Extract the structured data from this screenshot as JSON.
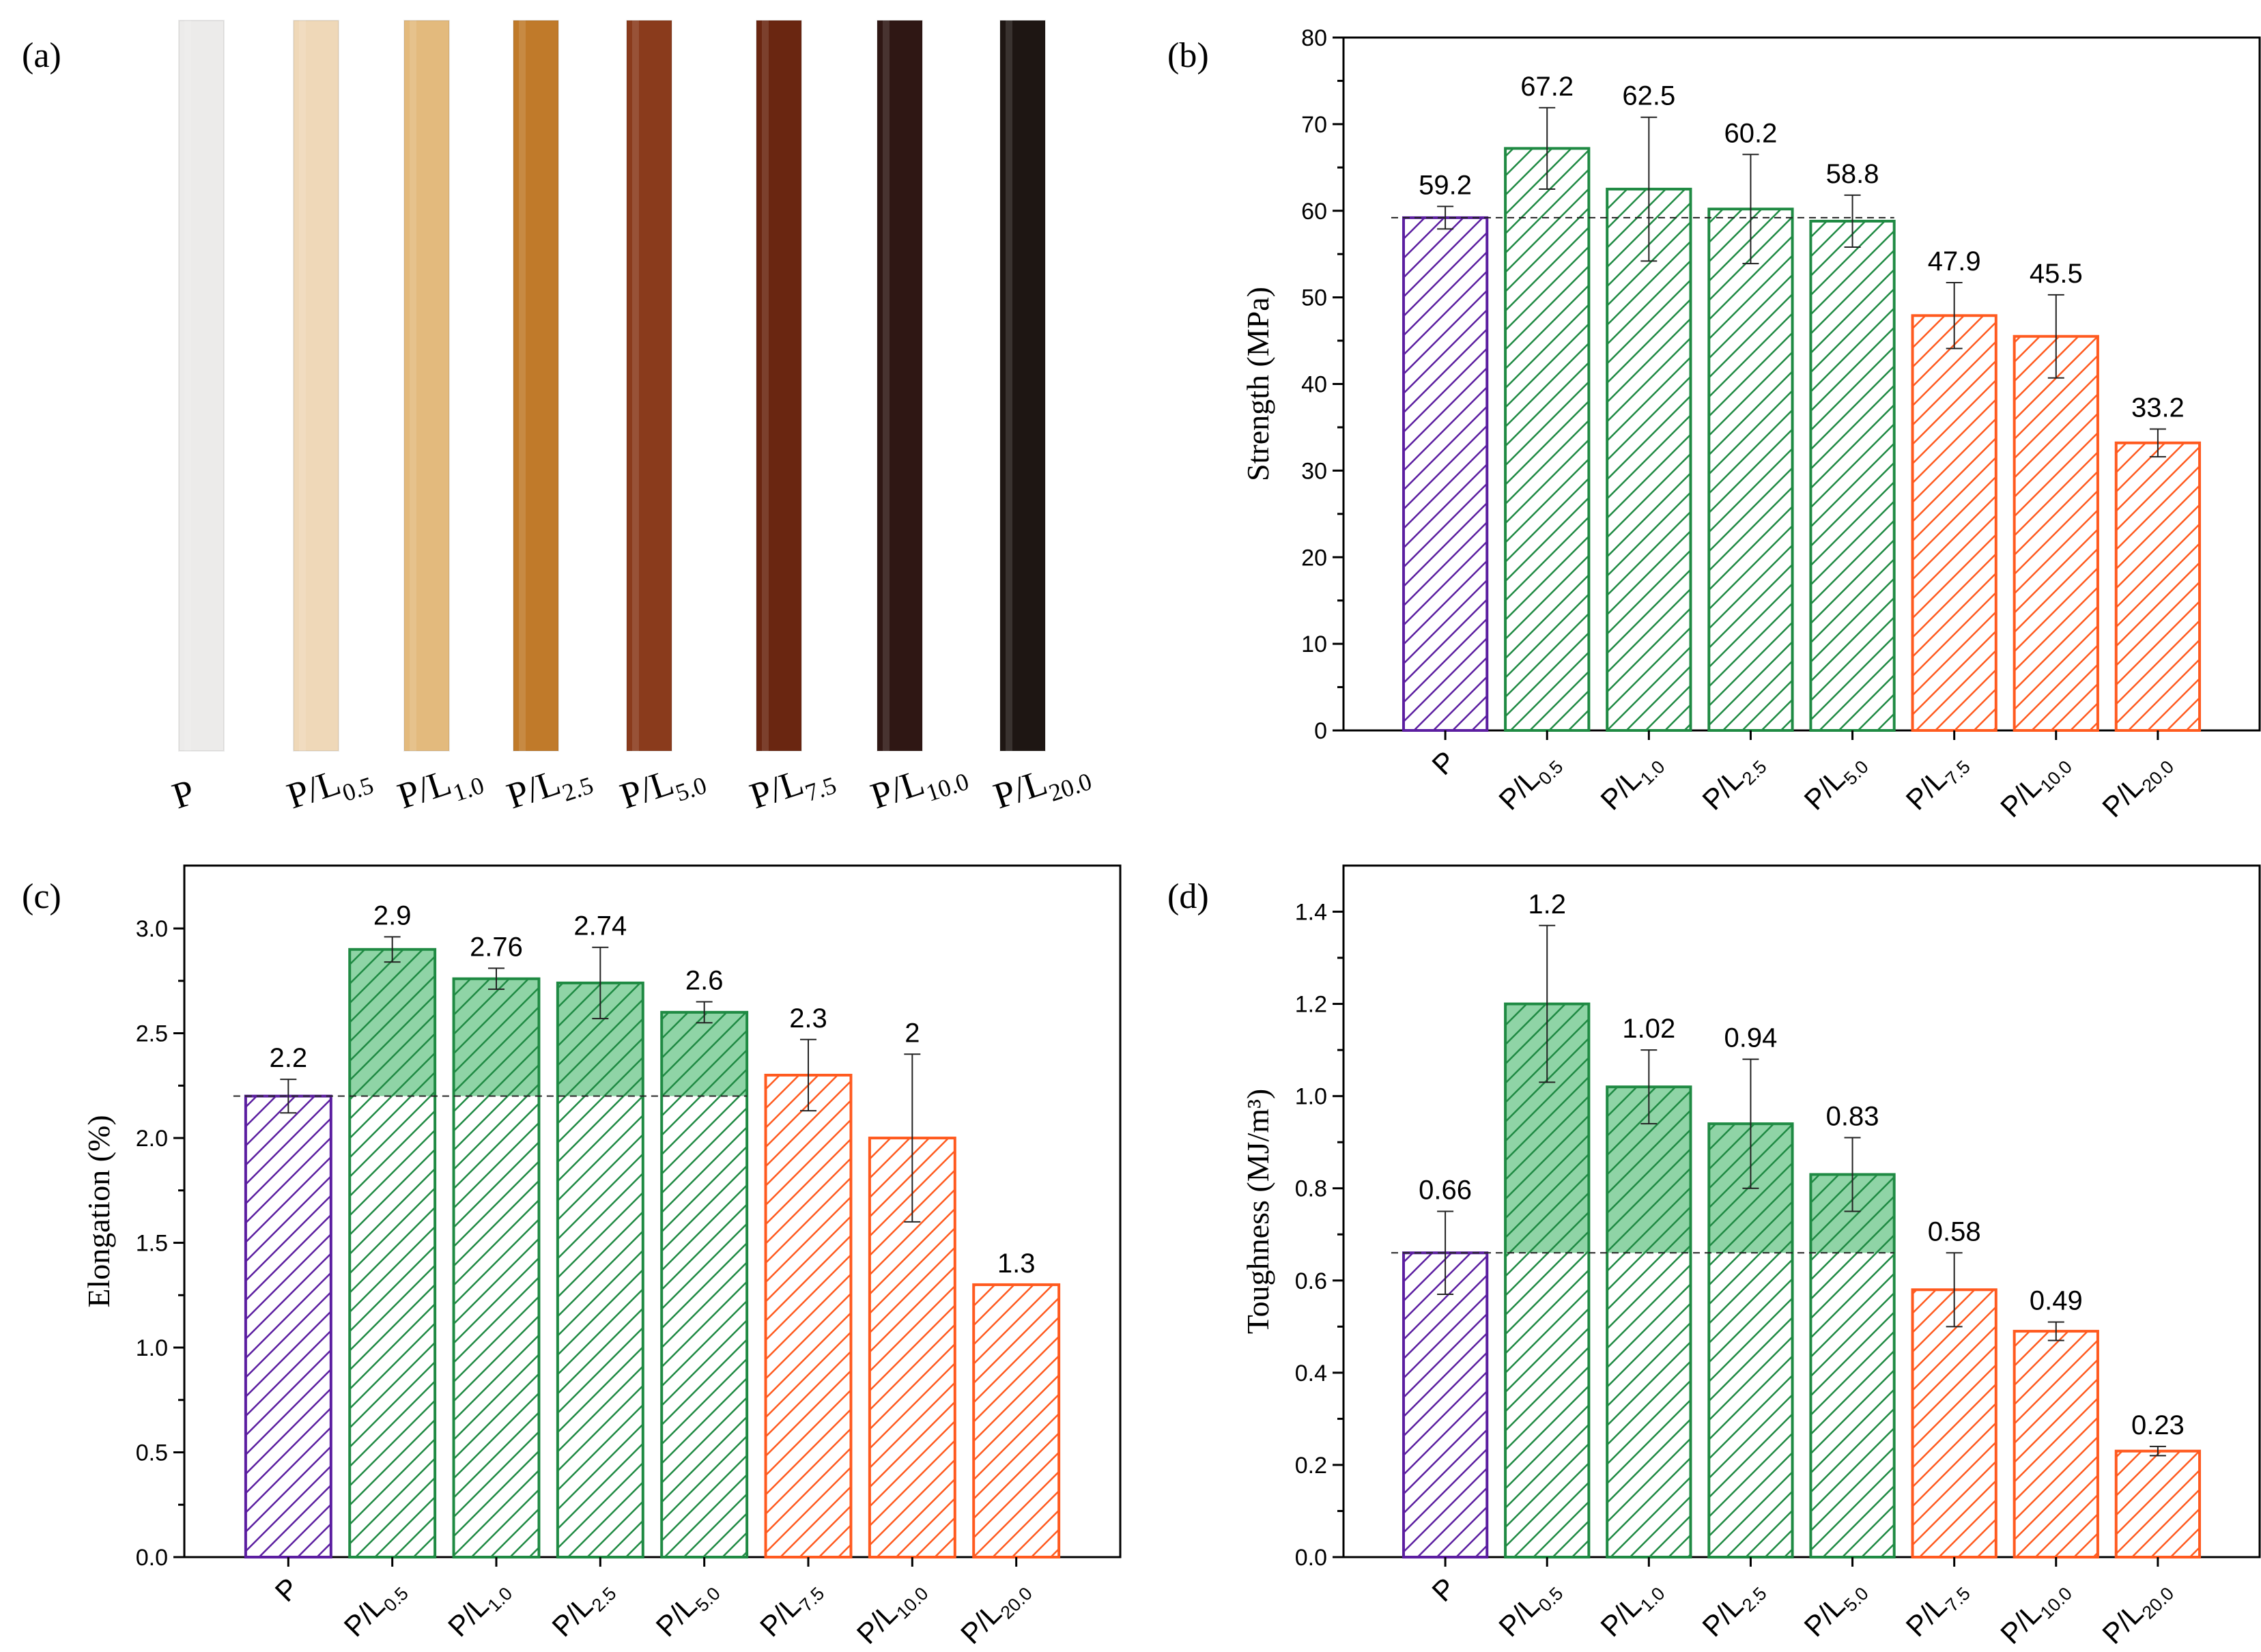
{
  "colors": {
    "pure": "#5b1ea0",
    "enhanced": "#1f8a43",
    "enhanced_fill": "#8fd4a6",
    "reduced": "#ff5a1f",
    "axis": "#000000"
  },
  "panel_a": {
    "label": "(a)",
    "samples": [
      {
        "main": "P",
        "sub": "",
        "color": "#ecebea"
      },
      {
        "main": "P/L",
        "sub": "0.5",
        "color": "#efd8b8"
      },
      {
        "main": "P/L",
        "sub": "1.0",
        "color": "#e3ba7d"
      },
      {
        "main": "P/L",
        "sub": "2.5",
        "color": "#c07a2a"
      },
      {
        "main": "P/L",
        "sub": "5.0",
        "color": "#8a3b1c"
      },
      {
        "main": "P/L",
        "sub": "7.5",
        "color": "#6a2611"
      },
      {
        "main": "P/L",
        "sub": "10.0",
        "color": "#2f1714"
      },
      {
        "main": "P/L",
        "sub": "20.0",
        "color": "#1e1613"
      }
    ]
  },
  "chart_data": [
    {
      "id": "b",
      "label": "(b)",
      "type": "bar",
      "ylabel": "Strength (MPa)",
      "ylim": [
        0,
        80
      ],
      "yticks": [
        0,
        10,
        20,
        30,
        40,
        50,
        60,
        70,
        80
      ],
      "tick_decimals": 0,
      "baseline": 59.2,
      "categories": [
        {
          "main": "P",
          "sub": ""
        },
        {
          "main": "P/L",
          "sub": "0.5"
        },
        {
          "main": "P/L",
          "sub": "1.0"
        },
        {
          "main": "P/L",
          "sub": "2.5"
        },
        {
          "main": "P/L",
          "sub": "5.0"
        },
        {
          "main": "P/L",
          "sub": "7.5"
        },
        {
          "main": "P/L",
          "sub": "10.0"
        },
        {
          "main": "P/L",
          "sub": "20.0"
        }
      ],
      "values": [
        59.2,
        67.2,
        62.5,
        60.2,
        58.8,
        47.9,
        45.5,
        33.2
      ],
      "value_labels": [
        "59.2",
        "67.2",
        "62.5",
        "60.2",
        "58.8",
        "47.9",
        "45.5",
        "33.2"
      ],
      "errors": [
        1.3,
        4.7,
        8.3,
        6.3,
        3.0,
        3.8,
        4.8,
        1.6
      ],
      "groups": [
        "pure",
        "enhanced",
        "enhanced",
        "enhanced",
        "enhanced",
        "reduced",
        "reduced",
        "reduced"
      ]
    },
    {
      "id": "c",
      "label": "(c)",
      "type": "bar",
      "ylabel": "Elongation (%)",
      "ylim": [
        0,
        3.3
      ],
      "yticks": [
        0,
        0.5,
        1.0,
        1.5,
        2.0,
        2.5,
        3.0
      ],
      "tick_decimals": 1,
      "baseline": 2.2,
      "categories": [
        {
          "main": "P",
          "sub": ""
        },
        {
          "main": "P/L",
          "sub": "0.5"
        },
        {
          "main": "P/L",
          "sub": "1.0"
        },
        {
          "main": "P/L",
          "sub": "2.5"
        },
        {
          "main": "P/L",
          "sub": "5.0"
        },
        {
          "main": "P/L",
          "sub": "7.5"
        },
        {
          "main": "P/L",
          "sub": "10.0"
        },
        {
          "main": "P/L",
          "sub": "20.0"
        }
      ],
      "values": [
        2.2,
        2.9,
        2.76,
        2.74,
        2.6,
        2.3,
        2.0,
        1.3
      ],
      "value_labels": [
        "2.2",
        "2.9",
        "2.76",
        "2.74",
        "2.6",
        "2.3",
        "2",
        "1.3"
      ],
      "errors": [
        0.08,
        0.06,
        0.05,
        0.17,
        0.05,
        0.17,
        0.4,
        0.0
      ],
      "groups": [
        "pure",
        "enhanced",
        "enhanced",
        "enhanced",
        "enhanced",
        "reduced",
        "reduced",
        "reduced"
      ]
    },
    {
      "id": "d",
      "label": "(d)",
      "type": "bar",
      "ylabel": "Toughness (MJ/m³)",
      "ylim": [
        0,
        1.5
      ],
      "yticks": [
        0,
        0.2,
        0.4,
        0.6,
        0.8,
        1.0,
        1.2,
        1.4
      ],
      "tick_decimals": 1,
      "baseline": 0.66,
      "categories": [
        {
          "main": "P",
          "sub": ""
        },
        {
          "main": "P/L",
          "sub": "0.5"
        },
        {
          "main": "P/L",
          "sub": "1.0"
        },
        {
          "main": "P/L",
          "sub": "2.5"
        },
        {
          "main": "P/L",
          "sub": "5.0"
        },
        {
          "main": "P/L",
          "sub": "7.5"
        },
        {
          "main": "P/L",
          "sub": "10.0"
        },
        {
          "main": "P/L",
          "sub": "20.0"
        }
      ],
      "values": [
        0.66,
        1.2,
        1.02,
        0.94,
        0.83,
        0.58,
        0.49,
        0.23
      ],
      "value_labels": [
        "0.66",
        "1.2",
        "1.02",
        "0.94",
        "0.83",
        "0.58",
        "0.49",
        "0.23"
      ],
      "errors": [
        0.09,
        0.17,
        0.08,
        0.14,
        0.08,
        0.08,
        0.02,
        0.01
      ],
      "groups": [
        "pure",
        "enhanced",
        "enhanced",
        "enhanced",
        "enhanced",
        "reduced",
        "reduced",
        "reduced"
      ]
    }
  ]
}
